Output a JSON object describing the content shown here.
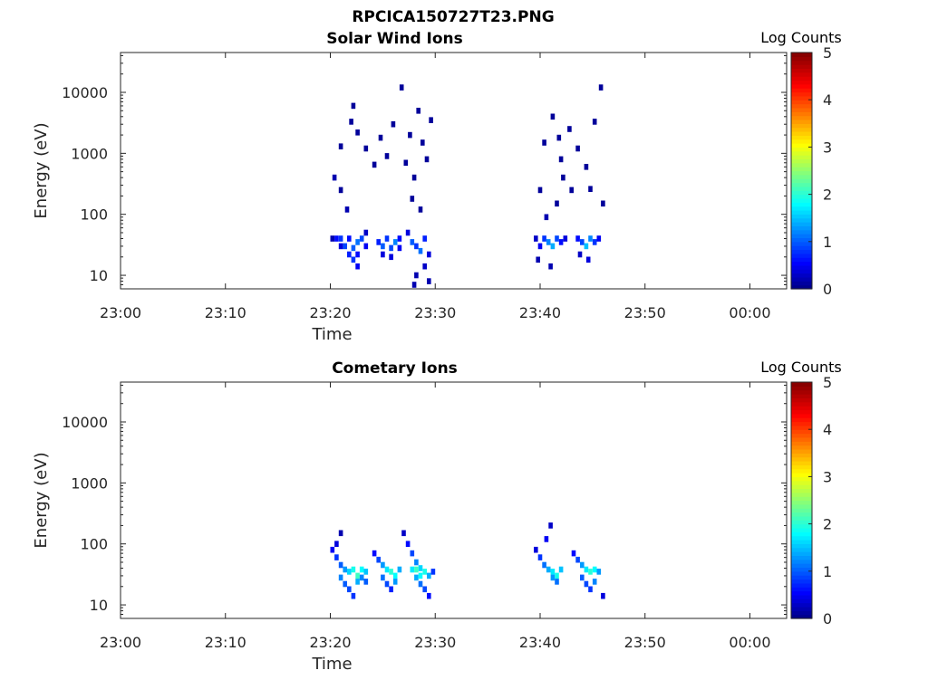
{
  "figure": {
    "title": "RPCICA150727T23.PNG"
  },
  "chart_data": [
    {
      "type": "heatmap",
      "title": "Solar Wind Ions",
      "xlabel": "Time",
      "ylabel": "Energy (eV)",
      "xticks": [
        "23:00",
        "23:10",
        "23:20",
        "23:30",
        "23:40",
        "23:50",
        "00:00"
      ],
      "xlim_minutes": [
        0,
        63.5
      ],
      "yscale": "log",
      "ylim": [
        6,
        45000
      ],
      "yticks": [
        10,
        100,
        1000,
        10000
      ],
      "ytick_labels": [
        "10",
        "100",
        "1000",
        "10000"
      ],
      "colorbar": {
        "title": "Log Counts",
        "range": [
          0,
          5
        ],
        "ticks": [
          "0",
          "1",
          "2",
          "3",
          "4",
          "5"
        ]
      },
      "cells": [
        [
          20.2,
          40,
          0.2
        ],
        [
          20.6,
          40,
          0.6
        ],
        [
          21.0,
          40,
          0.8
        ],
        [
          21.4,
          30,
          0.9
        ],
        [
          21.8,
          22,
          0.7
        ],
        [
          22.2,
          18,
          0.8
        ],
        [
          22.6,
          35,
          1.1
        ],
        [
          23.0,
          40,
          0.9
        ],
        [
          23.4,
          30,
          0.5
        ],
        [
          21.8,
          40,
          0.6
        ],
        [
          22.2,
          28,
          1.0
        ],
        [
          22.6,
          22,
          0.6
        ],
        [
          21.0,
          30,
          0.4
        ],
        [
          22.6,
          14,
          0.5
        ],
        [
          23.4,
          50,
          0.3
        ],
        [
          24.6,
          35,
          0.7
        ],
        [
          25.0,
          30,
          1.0
        ],
        [
          25.4,
          40,
          0.8
        ],
        [
          25.8,
          28,
          0.9
        ],
        [
          26.2,
          35,
          1.2
        ],
        [
          26.6,
          40,
          0.6
        ],
        [
          25.0,
          22,
          0.4
        ],
        [
          25.8,
          20,
          0.4
        ],
        [
          26.6,
          28,
          0.5
        ],
        [
          27.4,
          50,
          0.4
        ],
        [
          27.8,
          35,
          1.0
        ],
        [
          28.2,
          30,
          0.8
        ],
        [
          28.6,
          25,
          1.1
        ],
        [
          29.0,
          40,
          0.7
        ],
        [
          29.4,
          22,
          0.4
        ],
        [
          28.2,
          10,
          0.2
        ],
        [
          29.0,
          14,
          0.3
        ],
        [
          29.4,
          8,
          0.2
        ],
        [
          28.0,
          7,
          0.2
        ],
        [
          20.4,
          400,
          0.2
        ],
        [
          21.0,
          250,
          0.1
        ],
        [
          21.6,
          120,
          0.2
        ],
        [
          22.2,
          6000,
          0.1
        ],
        [
          22.6,
          2200,
          0.1
        ],
        [
          23.4,
          1200,
          0.1
        ],
        [
          24.2,
          650,
          0.1
        ],
        [
          24.8,
          1800,
          0.1
        ],
        [
          25.4,
          900,
          0.1
        ],
        [
          26.0,
          3000,
          0.1
        ],
        [
          26.8,
          12000,
          0.1
        ],
        [
          27.2,
          700,
          0.1
        ],
        [
          27.6,
          2000,
          0.1
        ],
        [
          28.0,
          400,
          0.1
        ],
        [
          28.4,
          5000,
          0.1
        ],
        [
          28.8,
          1500,
          0.1
        ],
        [
          29.2,
          800,
          0.1
        ],
        [
          29.6,
          3500,
          0.1
        ],
        [
          27.8,
          180,
          0.1
        ],
        [
          28.6,
          120,
          0.1
        ],
        [
          21.0,
          1300,
          0.1
        ],
        [
          22.0,
          3300,
          0.1
        ],
        [
          39.6,
          40,
          0.3
        ],
        [
          40.0,
          30,
          0.5
        ],
        [
          40.4,
          40,
          0.8
        ],
        [
          40.8,
          35,
          1.2
        ],
        [
          41.2,
          30,
          1.4
        ],
        [
          41.6,
          40,
          0.9
        ],
        [
          42.0,
          35,
          0.6
        ],
        [
          42.4,
          40,
          0.4
        ],
        [
          43.6,
          40,
          0.6
        ],
        [
          44.0,
          35,
          0.9
        ],
        [
          44.4,
          30,
          1.5
        ],
        [
          44.8,
          40,
          1.2
        ],
        [
          45.2,
          35,
          0.8
        ],
        [
          45.6,
          40,
          0.5
        ],
        [
          39.8,
          18,
          0.2
        ],
        [
          41.0,
          14,
          0.2
        ],
        [
          44.6,
          18,
          0.4
        ],
        [
          43.8,
          22,
          0.3
        ],
        [
          40.6,
          90,
          0.2
        ],
        [
          41.6,
          150,
          0.1
        ],
        [
          42.2,
          400,
          0.1
        ],
        [
          43.0,
          250,
          0.1
        ],
        [
          40.4,
          1500,
          0.1
        ],
        [
          41.2,
          4000,
          0.1
        ],
        [
          42.0,
          800,
          0.1
        ],
        [
          42.8,
          2500,
          0.1
        ],
        [
          43.6,
          1200,
          0.1
        ],
        [
          44.4,
          600,
          0.1
        ],
        [
          45.2,
          3300,
          0.1
        ],
        [
          45.8,
          12000,
          0.1
        ],
        [
          40.0,
          250,
          0.1
        ],
        [
          41.8,
          1800,
          0.1
        ],
        [
          44.8,
          260,
          0.1
        ],
        [
          46.0,
          150,
          0.1
        ]
      ]
    },
    {
      "type": "heatmap",
      "title": "Cometary Ions",
      "xlabel": "Time",
      "ylabel": "Energy (eV)",
      "xticks": [
        "23:00",
        "23:10",
        "23:20",
        "23:30",
        "23:40",
        "23:50",
        "00:00"
      ],
      "xlim_minutes": [
        0,
        63.5
      ],
      "yscale": "log",
      "ylim": [
        6,
        45000
      ],
      "yticks": [
        10,
        100,
        1000,
        10000
      ],
      "ytick_labels": [
        "10",
        "100",
        "1000",
        "10000"
      ],
      "colorbar": {
        "title": "Log Counts",
        "range": [
          0,
          5
        ],
        "ticks": [
          "0",
          "1",
          "2",
          "3",
          "4",
          "5"
        ]
      },
      "cells": [
        [
          20.2,
          80,
          0.5
        ],
        [
          20.6,
          60,
          0.8
        ],
        [
          21.0,
          45,
          1.0
        ],
        [
          21.4,
          38,
          1.3
        ],
        [
          21.8,
          35,
          1.6
        ],
        [
          22.2,
          38,
          1.9
        ],
        [
          22.6,
          30,
          2.1
        ],
        [
          23.0,
          38,
          1.8
        ],
        [
          23.4,
          35,
          1.5
        ],
        [
          21.0,
          28,
          1.2
        ],
        [
          21.4,
          22,
          1.0
        ],
        [
          21.8,
          18,
          0.9
        ],
        [
          22.2,
          14,
          0.8
        ],
        [
          22.6,
          24,
          1.4
        ],
        [
          21.0,
          150,
          0.2
        ],
        [
          20.6,
          100,
          0.4
        ],
        [
          23.0,
          28,
          1.2
        ],
        [
          23.4,
          24,
          1.0
        ],
        [
          24.2,
          70,
          0.6
        ],
        [
          24.6,
          55,
          0.9
        ],
        [
          25.0,
          45,
          1.3
        ],
        [
          25.4,
          38,
          1.7
        ],
        [
          25.8,
          35,
          2.0
        ],
        [
          26.2,
          30,
          1.8
        ],
        [
          26.6,
          38,
          1.4
        ],
        [
          25.0,
          28,
          1.1
        ],
        [
          25.4,
          22,
          0.9
        ],
        [
          25.8,
          18,
          0.7
        ],
        [
          26.2,
          24,
          1.3
        ],
        [
          27.0,
          150,
          0.3
        ],
        [
          27.4,
          100,
          0.6
        ],
        [
          27.8,
          70,
          0.9
        ],
        [
          28.2,
          50,
          1.2
        ],
        [
          28.6,
          40,
          1.6
        ],
        [
          29.0,
          35,
          1.9
        ],
        [
          29.4,
          30,
          1.4
        ],
        [
          29.8,
          35,
          0.8
        ],
        [
          28.2,
          28,
          1.4
        ],
        [
          28.6,
          22,
          1.1
        ],
        [
          29.0,
          18,
          0.9
        ],
        [
          29.4,
          14,
          0.6
        ],
        [
          27.8,
          38,
          1.7
        ],
        [
          28.2,
          38,
          2.1
        ],
        [
          28.6,
          30,
          1.8
        ],
        [
          39.6,
          80,
          0.4
        ],
        [
          40.0,
          60,
          0.8
        ],
        [
          40.4,
          45,
          1.1
        ],
        [
          40.8,
          38,
          1.4
        ],
        [
          41.2,
          35,
          1.7
        ],
        [
          41.6,
          30,
          1.9
        ],
        [
          42.0,
          38,
          1.5
        ],
        [
          41.0,
          200,
          0.3
        ],
        [
          40.6,
          120,
          0.5
        ],
        [
          41.2,
          28,
          1.3
        ],
        [
          41.6,
          24,
          1.1
        ],
        [
          43.2,
          70,
          0.6
        ],
        [
          43.6,
          55,
          0.9
        ],
        [
          44.0,
          45,
          1.3
        ],
        [
          44.4,
          38,
          1.7
        ],
        [
          44.8,
          35,
          2.0
        ],
        [
          45.2,
          38,
          1.8
        ],
        [
          45.6,
          35,
          1.3
        ],
        [
          44.0,
          28,
          1.0
        ],
        [
          44.4,
          22,
          0.9
        ],
        [
          44.8,
          18,
          0.8
        ],
        [
          45.2,
          24,
          1.2
        ],
        [
          46.0,
          14,
          0.4
        ]
      ]
    }
  ]
}
